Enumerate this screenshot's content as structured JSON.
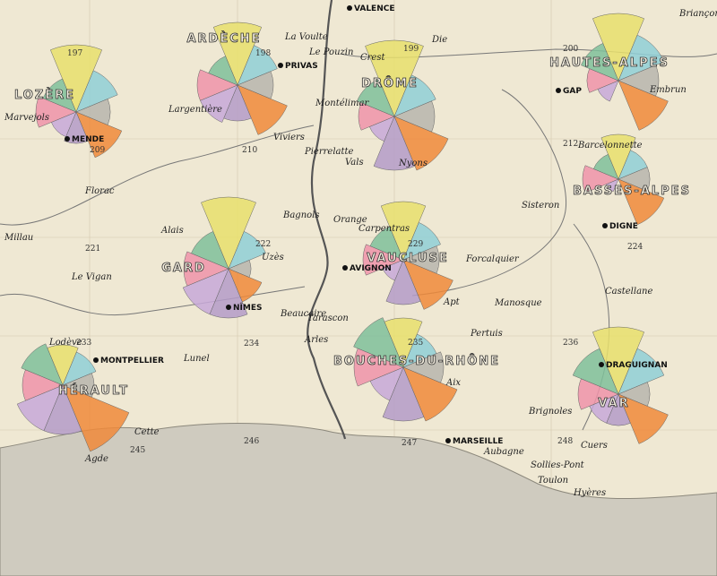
{
  "departments": [
    {
      "name": "LOZÈRE",
      "number": "197",
      "sectors": [
        75,
        50,
        38,
        55,
        35,
        30,
        45,
        40
      ]
    },
    {
      "name": "ARDÈCHE",
      "number": "198",
      "sectors": [
        70,
        48,
        40,
        60,
        40,
        45,
        45,
        35
      ]
    },
    {
      "name": "DRÔME",
      "number": "199",
      "sectors": [
        85,
        50,
        45,
        65,
        60,
        30,
        40,
        45
      ]
    },
    {
      "name": "HAUTES-ALPES",
      "number": "200",
      "sectors": [
        75,
        55,
        45,
        60,
        0,
        25,
        35,
        45
      ]
    },
    {
      "name": "BASSES-ALPES",
      "number": "212",
      "sectors": [
        50,
        35,
        35,
        55,
        0,
        15,
        40,
        30
      ]
    },
    {
      "name": "GARD",
      "number": "222",
      "sectors": [
        80,
        45,
        25,
        40,
        55,
        55,
        50,
        45
      ]
    },
    {
      "name": "VAUCLUSE",
      "number": "229",
      "sectors": [
        65,
        45,
        40,
        60,
        50,
        25,
        45,
        40
      ]
    },
    {
      "name": "HÉRAULT",
      "number": "233",
      "sectors": [
        45,
        40,
        35,
        80,
        55,
        55,
        45,
        50
      ]
    },
    {
      "name": "BOUCHES-DU-RHÔNE",
      "number": "235",
      "sectors": [
        55,
        40,
        45,
        65,
        60,
        40,
        55,
        60
      ]
    },
    {
      "name": "VAR",
      "number": "236",
      "sectors": [
        75,
        55,
        35,
        60,
        35,
        35,
        45,
        55
      ]
    }
  ],
  "sector_colors": [
    "#e7df6c",
    "#8fcfd6",
    "#b7b5ad",
    "#f08a3a",
    "#b49bc8",
    "#c7a8d8",
    "#ef93a9",
    "#7fbf9a"
  ],
  "prefectures": [
    "VALENCE",
    "PRIVAS",
    "MENDE",
    "GAP",
    "DIGNE",
    "AVIGNON",
    "NÎMES",
    "MONTPELLIER",
    "MARSEILLE",
    "DRAGUIGNAN"
  ],
  "towns": [
    "Briançon",
    "Die",
    "Crest",
    "La Voulte",
    "Le Pouzin",
    "Largentière",
    "Montélimar",
    "Nyons",
    "Marvejols",
    "Florac",
    "Millau",
    "Le Vigan",
    "Alais",
    "Uzès",
    "Bagnols",
    "Orange",
    "Carpentras",
    "Sisteron",
    "Forcalquier",
    "Barcelonnette",
    "Embrun",
    "Castellane",
    "Apt",
    "Manosque",
    "Pertuis",
    "Beaucaire",
    "Tarascon",
    "Arles",
    "Aix",
    "Lodève",
    "Lunel",
    "Cette",
    "Agde",
    "Brignoles",
    "Toulon",
    "Aubagne",
    "Vals",
    "Viviers",
    "Pierrelatte",
    "Sollies-Pont",
    "Hyères",
    "Cuers"
  ],
  "section_numbers": [
    "209",
    "210",
    "221",
    "224",
    "234",
    "245",
    "246",
    "247",
    "248"
  ]
}
